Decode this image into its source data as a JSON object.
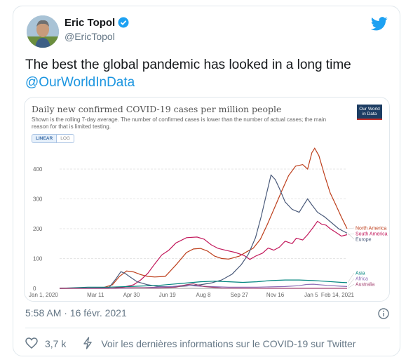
{
  "author": {
    "name": "Eric Topol",
    "handle": "@EricTopol"
  },
  "tweet": {
    "text": "The best the global pandemic has looked in a long time",
    "mention": "@OurWorldInData"
  },
  "chart_data": {
    "type": "line",
    "title": "Daily new confirmed COVID-19 cases per million people",
    "subtitle": "Shown is the rolling 7-day average. The number of confirmed cases is lower than the number of actual cases; the main reason for that is limited testing.",
    "logo_text": "Our World in Data",
    "scale_options": [
      "LINEAR",
      "LOG"
    ],
    "selected_scale": "LINEAR",
    "x_ticks": [
      "Jan 1, 2020",
      "Mar 11",
      "Apr 30",
      "Jun 19",
      "Aug 8",
      "Sep 27",
      "Nov 16",
      "Jan 5",
      "Feb 14, 2021"
    ],
    "y_ticks": [
      "0",
      "100",
      "200",
      "300",
      "400"
    ],
    "ylim": [
      0,
      480
    ],
    "grid": true,
    "series": [
      {
        "name": "North America",
        "color": "#bd3e1b",
        "points": [
          [
            0,
            0
          ],
          [
            60,
            1
          ],
          [
            75,
            12
          ],
          [
            85,
            40
          ],
          [
            95,
            58
          ],
          [
            105,
            55
          ],
          [
            115,
            46
          ],
          [
            125,
            40
          ],
          [
            135,
            38
          ],
          [
            150,
            40
          ],
          [
            165,
            78
          ],
          [
            180,
            120
          ],
          [
            190,
            132
          ],
          [
            200,
            134
          ],
          [
            210,
            125
          ],
          [
            220,
            108
          ],
          [
            230,
            100
          ],
          [
            240,
            98
          ],
          [
            255,
            108
          ],
          [
            265,
            122
          ],
          [
            275,
            135
          ],
          [
            285,
            165
          ],
          [
            295,
            215
          ],
          [
            305,
            270
          ],
          [
            315,
            325
          ],
          [
            325,
            378
          ],
          [
            335,
            410
          ],
          [
            345,
            415
          ],
          [
            352,
            400
          ],
          [
            358,
            455
          ],
          [
            362,
            470
          ],
          [
            368,
            445
          ],
          [
            376,
            380
          ],
          [
            384,
            320
          ],
          [
            392,
            280
          ],
          [
            400,
            238
          ],
          [
            408,
            200
          ]
        ]
      },
      {
        "name": "South America",
        "color": "#c2185b",
        "points": [
          [
            0,
            0
          ],
          [
            70,
            0
          ],
          [
            90,
            4
          ],
          [
            105,
            12
          ],
          [
            115,
            28
          ],
          [
            125,
            50
          ],
          [
            135,
            82
          ],
          [
            145,
            112
          ],
          [
            155,
            128
          ],
          [
            165,
            152
          ],
          [
            180,
            170
          ],
          [
            195,
            172
          ],
          [
            205,
            165
          ],
          [
            215,
            146
          ],
          [
            225,
            134
          ],
          [
            235,
            128
          ],
          [
            250,
            120
          ],
          [
            262,
            110
          ],
          [
            270,
            97
          ],
          [
            278,
            108
          ],
          [
            288,
            118
          ],
          [
            296,
            135
          ],
          [
            304,
            128
          ],
          [
            312,
            138
          ],
          [
            320,
            158
          ],
          [
            330,
            150
          ],
          [
            336,
            168
          ],
          [
            345,
            162
          ],
          [
            352,
            180
          ],
          [
            360,
            205
          ],
          [
            366,
            225
          ],
          [
            372,
            215
          ],
          [
            378,
            212
          ],
          [
            384,
            200
          ],
          [
            392,
            188
          ],
          [
            400,
            175
          ],
          [
            408,
            180
          ]
        ]
      },
      {
        "name": "Europe",
        "color": "#4a5a7a",
        "points": [
          [
            0,
            0
          ],
          [
            70,
            2
          ],
          [
            80,
            32
          ],
          [
            87,
            56
          ],
          [
            93,
            50
          ],
          [
            100,
            38
          ],
          [
            110,
            22
          ],
          [
            125,
            12
          ],
          [
            140,
            6
          ],
          [
            160,
            5
          ],
          [
            180,
            8
          ],
          [
            200,
            12
          ],
          [
            215,
            18
          ],
          [
            230,
            28
          ],
          [
            245,
            48
          ],
          [
            258,
            80
          ],
          [
            268,
            115
          ],
          [
            278,
            170
          ],
          [
            286,
            240
          ],
          [
            294,
            320
          ],
          [
            300,
            380
          ],
          [
            306,
            365
          ],
          [
            312,
            335
          ],
          [
            320,
            290
          ],
          [
            330,
            265
          ],
          [
            340,
            255
          ],
          [
            346,
            278
          ],
          [
            352,
            300
          ],
          [
            358,
            280
          ],
          [
            366,
            255
          ],
          [
            376,
            240
          ],
          [
            386,
            220
          ],
          [
            396,
            200
          ],
          [
            408,
            185
          ]
        ]
      },
      {
        "name": "Asia",
        "color": "#00847e",
        "points": [
          [
            0,
            0
          ],
          [
            40,
            4
          ],
          [
            70,
            4
          ],
          [
            100,
            6
          ],
          [
            140,
            10
          ],
          [
            180,
            18
          ],
          [
            200,
            22
          ],
          [
            220,
            24
          ],
          [
            240,
            22
          ],
          [
            260,
            20
          ],
          [
            280,
            22
          ],
          [
            300,
            26
          ],
          [
            320,
            28
          ],
          [
            340,
            28
          ],
          [
            360,
            26
          ],
          [
            380,
            23
          ],
          [
            400,
            20
          ],
          [
            408,
            19
          ]
        ]
      },
      {
        "name": "Africa",
        "color": "#8e6fb8",
        "points": [
          [
            0,
            0
          ],
          [
            80,
            0
          ],
          [
            120,
            2
          ],
          [
            160,
            6
          ],
          [
            175,
            10
          ],
          [
            185,
            9
          ],
          [
            200,
            7
          ],
          [
            240,
            4
          ],
          [
            280,
            4
          ],
          [
            320,
            6
          ],
          [
            340,
            9
          ],
          [
            350,
            13
          ],
          [
            360,
            14
          ],
          [
            380,
            10
          ],
          [
            400,
            7
          ],
          [
            408,
            6
          ]
        ]
      },
      {
        "name": "Australia",
        "color": "#a23f6f",
        "points": [
          [
            0,
            0
          ],
          [
            80,
            1
          ],
          [
            100,
            2
          ],
          [
            140,
            1
          ],
          [
            165,
            4
          ],
          [
            180,
            12
          ],
          [
            190,
            15
          ],
          [
            205,
            6
          ],
          [
            230,
            1
          ],
          [
            300,
            0
          ],
          [
            408,
            0
          ]
        ]
      }
    ]
  },
  "timestamp": "5:58 AM · 16 févr. 2021",
  "likes": "3,7 k",
  "info_link": "Voir les dernières informations sur le COVID-19 sur Twitter"
}
